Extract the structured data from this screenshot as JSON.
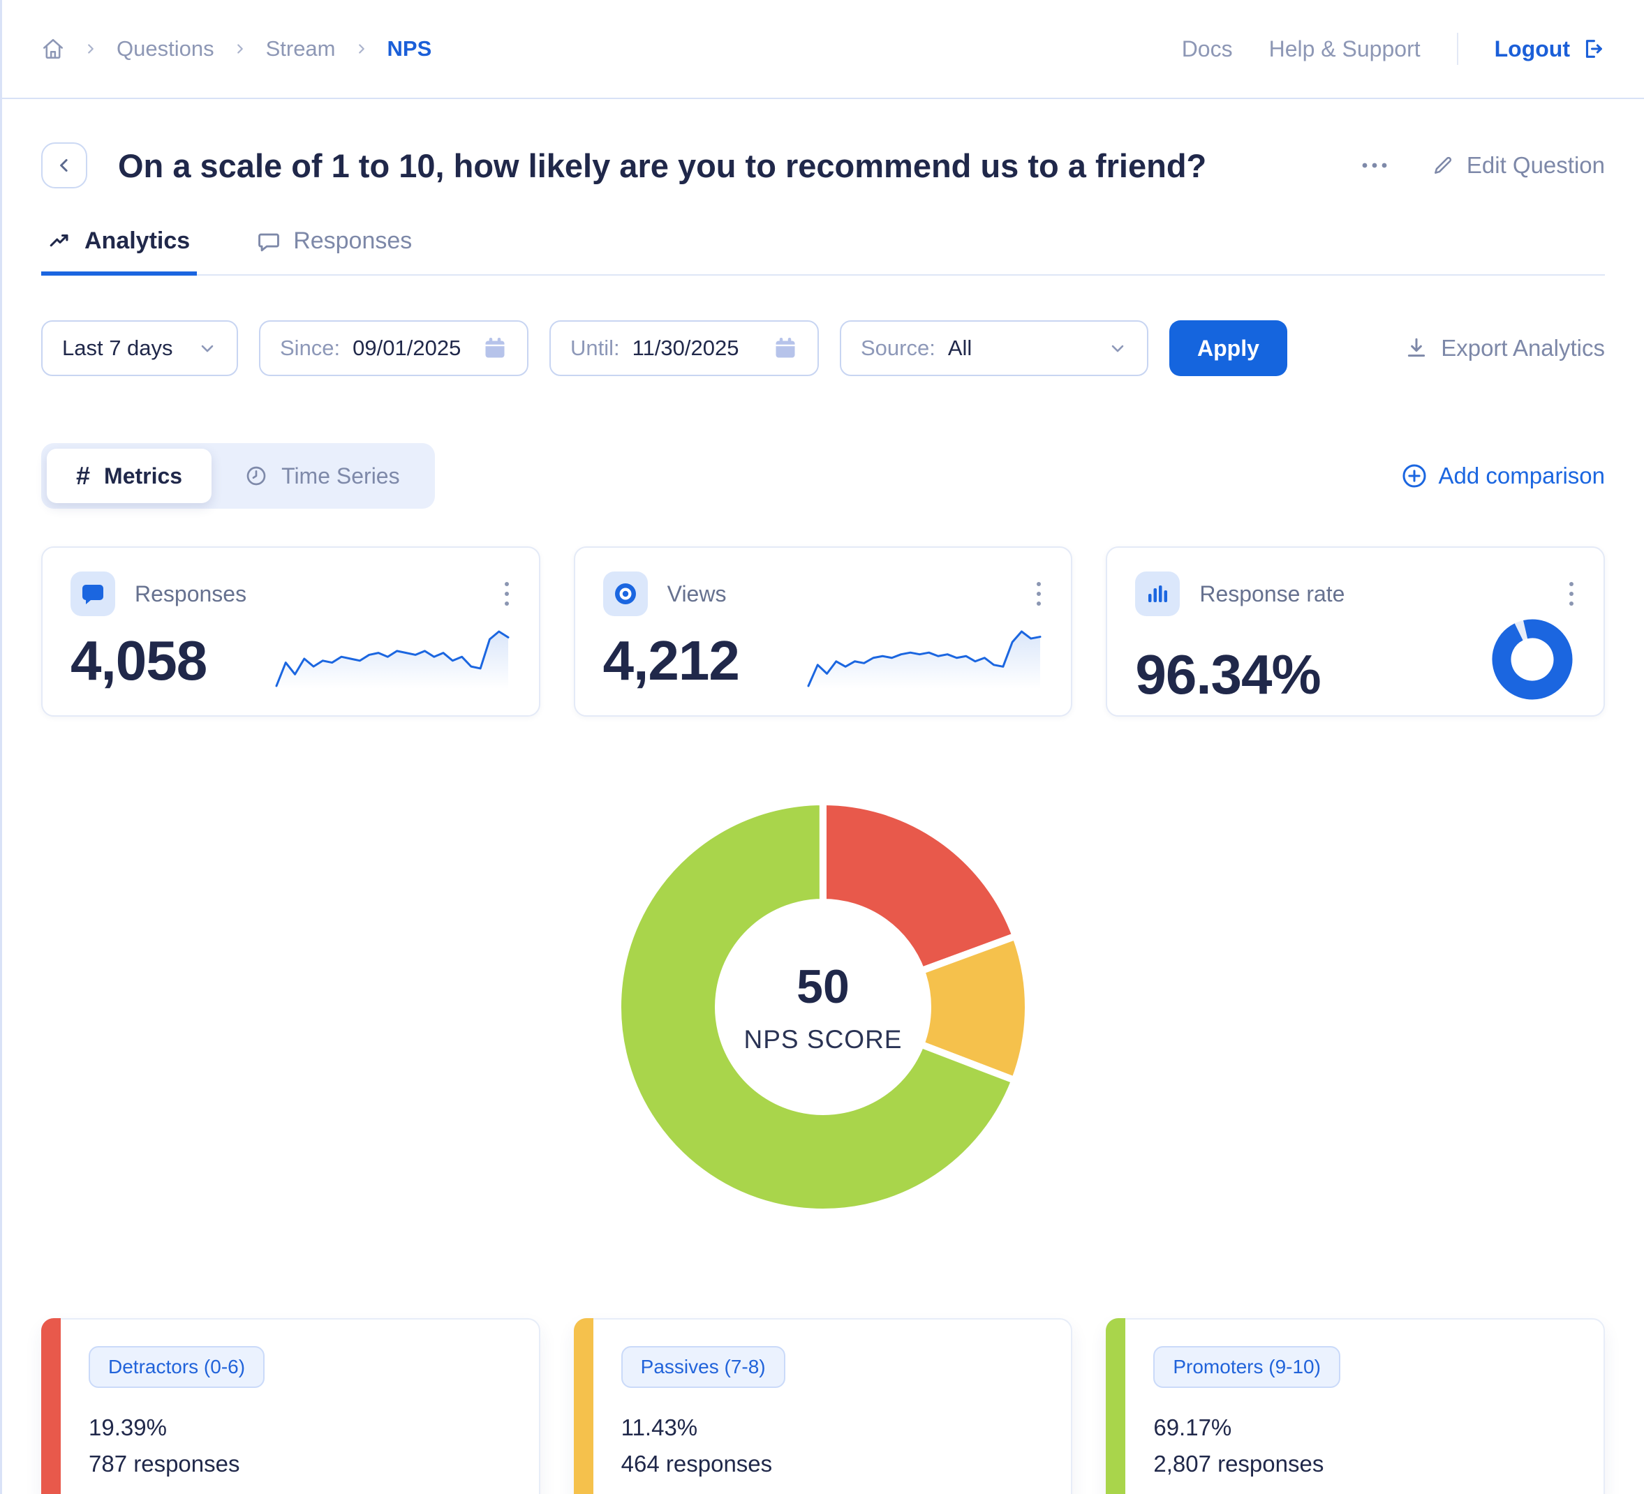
{
  "colors": {
    "accent": "#1b66e0",
    "navy": "#20284a",
    "muted": "#7d88a8",
    "detractor": "#e8594b",
    "passive": "#f5c14c",
    "promoter": "#a9d54b"
  },
  "header": {
    "breadcrumb": [
      "Questions",
      "Stream",
      "NPS"
    ],
    "docs": "Docs",
    "help": "Help & Support",
    "logout": "Logout"
  },
  "question": {
    "title": "On a scale of 1 to 10, how likely are you to recommend us to a friend?",
    "edit": "Edit Question"
  },
  "tabs": {
    "analytics": "Analytics",
    "responses": "Responses"
  },
  "filters": {
    "range": "Last 7 days",
    "since_label": "Since:",
    "since": "09/01/2025",
    "until_label": "Until:",
    "until": "11/30/2025",
    "source_label": "Source:",
    "source": "All",
    "apply": "Apply",
    "export": "Export Analytics"
  },
  "toggle": {
    "hash": "#",
    "metrics": "Metrics",
    "time_series": "Time Series",
    "add_comparison": "Add comparison"
  },
  "metric_cards": [
    {
      "label": "Responses",
      "value": "4,058"
    },
    {
      "label": "Views",
      "value": "4,212"
    },
    {
      "label": "Response rate",
      "value": "96.34%"
    }
  ],
  "donut_center": {
    "value": "50",
    "label": "NPS SCORE"
  },
  "segment_cards": [
    {
      "badge": "Detractors (0-6)",
      "pct": "19.39%",
      "responses": "787 responses"
    },
    {
      "badge": "Passives (7-8)",
      "pct": "11.43%",
      "responses": "464 responses"
    },
    {
      "badge": "Promoters (9-10)",
      "pct": "69.17%",
      "responses": "2,807 responses"
    }
  ],
  "chart_data": [
    {
      "type": "pie",
      "name": "nps-donut",
      "title": "NPS score breakdown",
      "center_value": "50",
      "center_label": "NPS SCORE",
      "start": "top",
      "direction": "clockwise",
      "slices": [
        {
          "label": "Detractors (0-6)",
          "value_pct": 19.39,
          "responses": 787,
          "color": "#e8594b"
        },
        {
          "label": "Passives (7-8)",
          "value_pct": 11.43,
          "responses": 464,
          "color": "#f5c14c"
        },
        {
          "label": "Promoters (9-10)",
          "value_pct": 69.17,
          "responses": 2807,
          "color": "#a9d54b"
        }
      ]
    },
    {
      "type": "line",
      "name": "responses-sparkline",
      "title": "Responses trend (last 7 days)",
      "values": [
        10,
        22,
        16,
        24,
        20,
        23,
        22,
        25,
        24,
        23,
        26,
        27,
        25,
        28,
        27,
        26,
        28,
        25,
        27,
        23,
        25,
        20,
        19,
        34,
        38,
        35
      ]
    },
    {
      "type": "line",
      "name": "views-sparkline",
      "title": "Views trend (last 7 days)",
      "values": [
        8,
        20,
        15,
        22,
        19,
        22,
        21,
        24,
        25,
        24,
        26,
        27,
        26,
        27,
        25,
        26,
        24,
        25,
        22,
        24,
        20,
        19,
        33,
        39,
        35,
        36
      ]
    },
    {
      "type": "pie",
      "name": "response-rate-ring",
      "title": "Response rate",
      "value_pct": 96.34,
      "color": "#1b66e0",
      "track_color": "#e7edf8"
    }
  ]
}
